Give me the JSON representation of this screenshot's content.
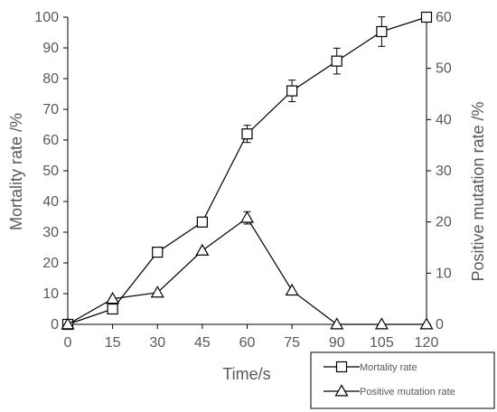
{
  "chart_data": {
    "type": "line",
    "title": "",
    "x": [
      0,
      15,
      30,
      45,
      60,
      75,
      90,
      105,
      120
    ],
    "xlabel": "Time/s",
    "xlim": [
      0,
      120
    ],
    "xticks": [
      "0",
      "15",
      "30",
      "45",
      "60",
      "75",
      "90",
      "105",
      "120"
    ],
    "ylabel_left": "Mortality rate /%",
    "ylim_left": [
      0,
      100
    ],
    "yticks_left": [
      "0",
      "10",
      "20",
      "30",
      "40",
      "50",
      "60",
      "70",
      "80",
      "90",
      "100"
    ],
    "ylabel_right": "Positive mutation rate /%",
    "ylim_right": [
      0,
      60
    ],
    "yticks_right": [
      "0",
      "10",
      "20",
      "30",
      "40",
      "50",
      "60"
    ],
    "grid": false,
    "legend_position": "bottom-right",
    "series": [
      {
        "name": "Mortality rate",
        "axis": "left",
        "marker": "square",
        "values": [
          0,
          5,
          23.5,
          33.3,
          62,
          76,
          85.7,
          95.3,
          100
        ],
        "errors": [
          0,
          0,
          0,
          0,
          2.8,
          3.5,
          4.2,
          4.8,
          0
        ]
      },
      {
        "name": "Positive mutation rate",
        "axis": "right",
        "marker": "triangle",
        "values": [
          0,
          5,
          6.2,
          14.4,
          20.8,
          6.6,
          0,
          0,
          0
        ],
        "errors": [
          0,
          0,
          0,
          0,
          1.2,
          0,
          0,
          0,
          0
        ]
      }
    ],
    "colors": {
      "line": "#000000",
      "text": "#595959",
      "axis": "#000000"
    }
  }
}
